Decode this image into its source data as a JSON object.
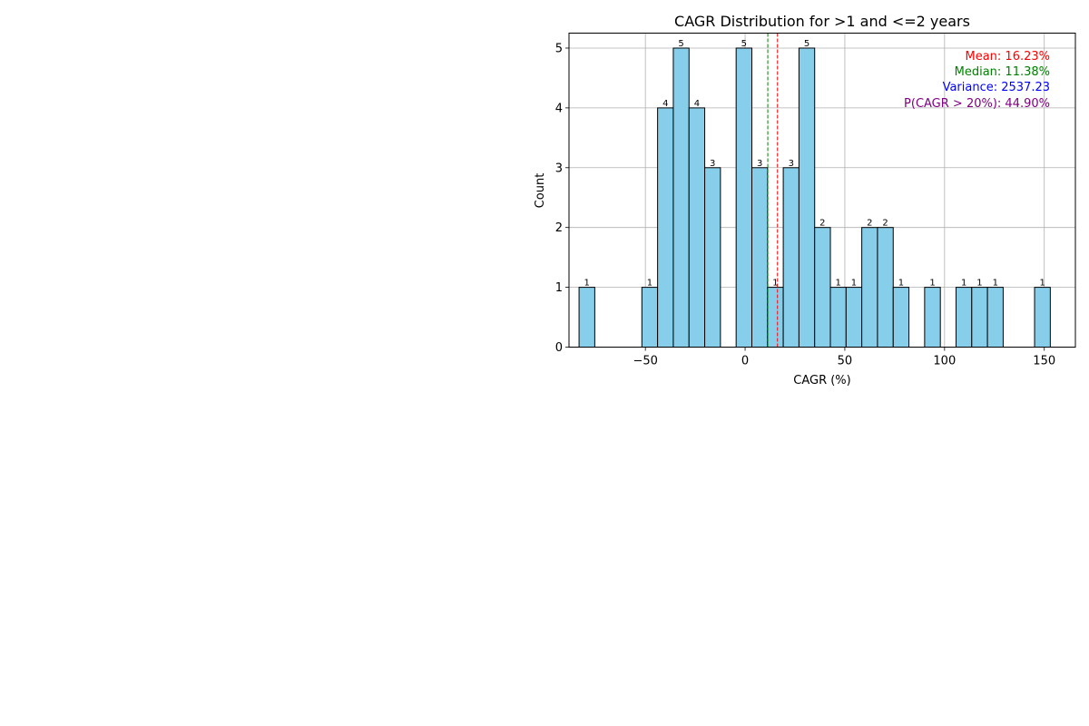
{
  "chart_data": {
    "type": "bar",
    "title": "CAGR Distribution for >1 and <=2 years",
    "xlabel": "CAGR (%)",
    "ylabel": "Count",
    "xlim": [
      -88.3,
      165.6
    ],
    "ylim": [
      0,
      5.25
    ],
    "xticks": [
      -50,
      0,
      50,
      100,
      150
    ],
    "yticks": [
      0,
      1,
      2,
      3,
      4,
      5
    ],
    "grid": true,
    "bin_width": 7.88,
    "bins": [
      {
        "left": -83.26,
        "count": 1
      },
      {
        "left": -51.76,
        "count": 1
      },
      {
        "left": -43.88,
        "count": 4
      },
      {
        "left": -36.0,
        "count": 5
      },
      {
        "left": -28.13,
        "count": 4
      },
      {
        "left": -20.25,
        "count": 3
      },
      {
        "left": -4.5,
        "count": 5
      },
      {
        "left": 3.38,
        "count": 3
      },
      {
        "left": 11.25,
        "count": 1
      },
      {
        "left": 19.13,
        "count": 3
      },
      {
        "left": 27.0,
        "count": 5
      },
      {
        "left": 34.88,
        "count": 2
      },
      {
        "left": 42.75,
        "count": 1
      },
      {
        "left": 50.63,
        "count": 1
      },
      {
        "left": 58.5,
        "count": 2
      },
      {
        "left": 66.38,
        "count": 2
      },
      {
        "left": 74.26,
        "count": 1
      },
      {
        "left": 90.01,
        "count": 1
      },
      {
        "left": 105.76,
        "count": 1
      },
      {
        "left": 113.64,
        "count": 1
      },
      {
        "left": 121.51,
        "count": 1
      },
      {
        "left": 145.14,
        "count": 1
      }
    ],
    "mean_line": 16.23,
    "median_line": 11.38,
    "stats": [
      {
        "text": "Mean: 16.23%",
        "color": "#ff0000"
      },
      {
        "text": "Median: 11.38%",
        "color": "#008000"
      },
      {
        "text": "Variance: 2537.23",
        "color": "#0000ff"
      },
      {
        "text": "P(CAGR > 20%): 44.90%",
        "color": "#800080"
      }
    ],
    "colors": {
      "bar_fill": "#87ceeb",
      "bar_edge": "#000000",
      "grid": "#b0b0b0",
      "mean_line": "#ff0000",
      "median_line": "#008000"
    }
  }
}
